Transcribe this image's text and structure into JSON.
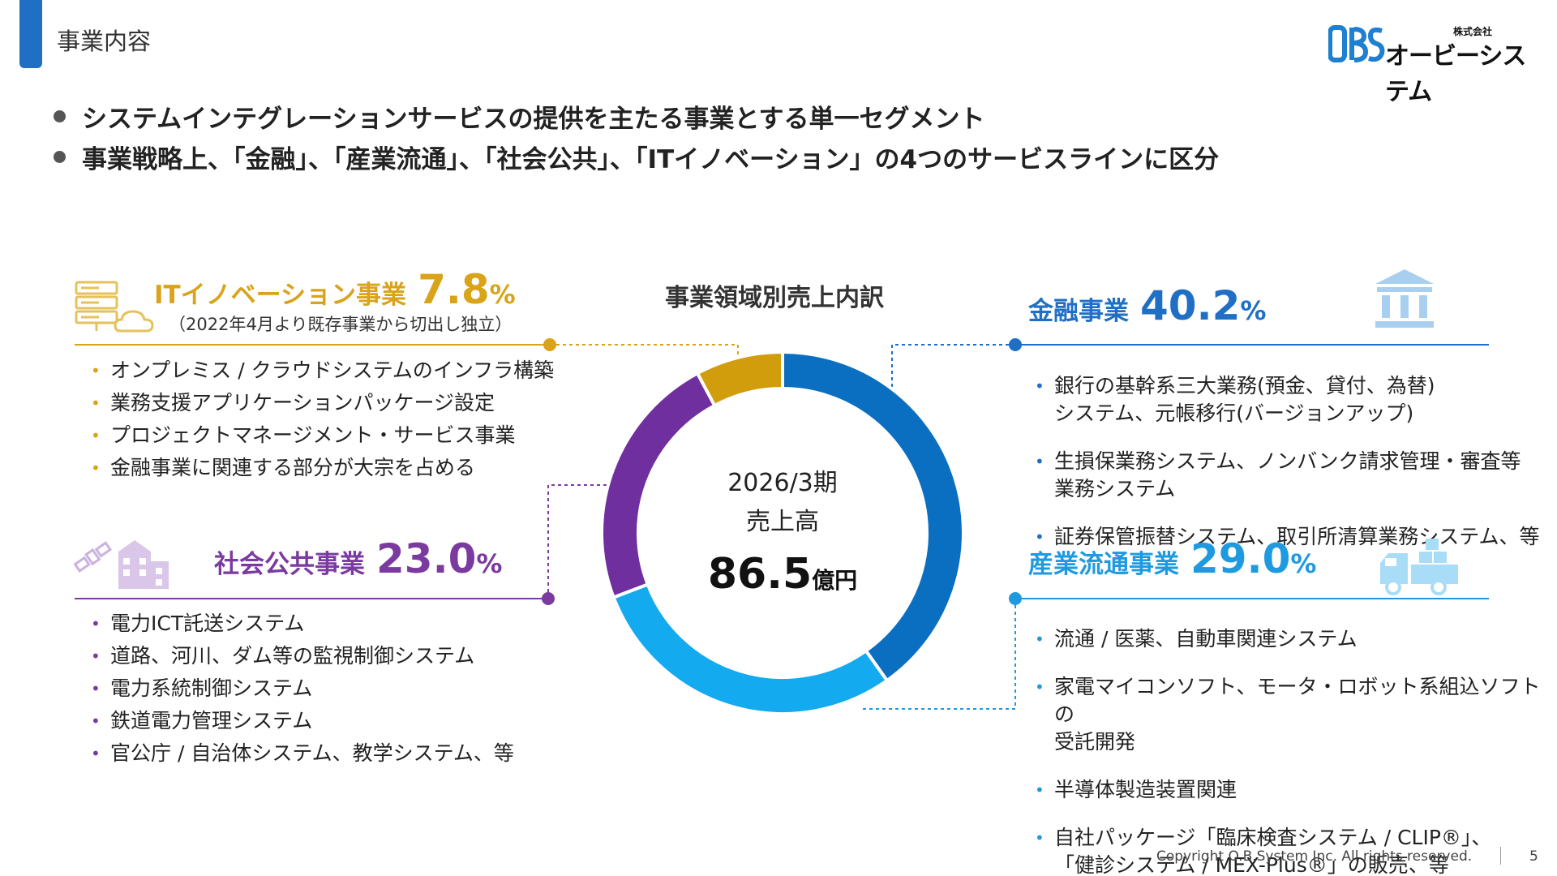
{
  "header": {
    "title": "事業内容"
  },
  "logo": {
    "corp_label": "株式会社",
    "name": "オービーシステム",
    "mark": "OBS"
  },
  "bullets": [
    "システムインテグレーションサービスの提供を主たる事業とする単一セグメント",
    "事業戦略上、「金融」、「産業流通」、「社会公共」、「ITイノベーション」の4つのサービスラインに区分"
  ],
  "segments": {
    "it": {
      "name": "ITイノベーション事業",
      "pct": "7.8",
      "pct_sign": "%",
      "note": "（2022年4月より既存事業から切出し独立）",
      "items": [
        "オンプレミス / クラウドシステムのインフラ構築",
        "業務支援アプリケーションパッケージ設定",
        "プロジェクトマネージメント・サービス事業",
        "金融事業に関連する部分が大宗を占める"
      ],
      "color": "#d9a31a",
      "icon": "server-cloud-icon"
    },
    "social": {
      "name": "社会公共事業",
      "pct": "23.0",
      "pct_sign": "%",
      "items": [
        "電力ICT託送システム",
        "道路、河川、ダム等の監視制御システム",
        "電力系統制御システム",
        "鉄道電力管理システム",
        "官公庁 / 自治体システム、教学システム、等"
      ],
      "color": "#7a3aa0",
      "icon": "satellite-building-icon"
    },
    "finance": {
      "name": "金融事業",
      "pct": "40.2",
      "pct_sign": "%",
      "items": [
        "銀行の基幹系三大業務(預金、貸付、為替)\nシステム、元帳移行(バージョンアップ)",
        "生損保業務システム、ノンバンク請求管理・審査等\n業務システム",
        "証券保管振替システム、取引所清算業務システム、等"
      ],
      "color": "#1f6fc5",
      "icon": "bank-icon"
    },
    "industry": {
      "name": "産業流通事業",
      "pct": "29.0",
      "pct_sign": "%",
      "items": [
        "流通 / 医薬、自動車関連システム",
        "家電マイコンソフト、モータ・ロボット系組込ソフトの\n受託開発",
        "半導体製造装置関連",
        "自社パッケージ「臨床検査システム / CLIP®」、\n「健診システム / MEX-Plus®」の販売、等"
      ],
      "color": "#1f9ae0",
      "icon": "truck-icon"
    }
  },
  "chart_data": {
    "type": "pie",
    "donut": true,
    "title": "事業領域別売上内訳",
    "start": "top",
    "direction": "clockwise",
    "categories": [
      "金融事業",
      "産業流通事業",
      "社会公共事業",
      "ITイノベーション事業"
    ],
    "values": [
      40.2,
      29.0,
      23.0,
      7.8
    ],
    "colors": [
      "#0b6fc1",
      "#13aaf0",
      "#6f2f9e",
      "#d19d0c"
    ],
    "center": {
      "period": "2026/3期",
      "label": "売上高",
      "value": "86.5",
      "unit": "億円"
    }
  },
  "footer": {
    "copyright": "Copyright O.B.System Inc. All rights reserved.",
    "page": "5"
  }
}
